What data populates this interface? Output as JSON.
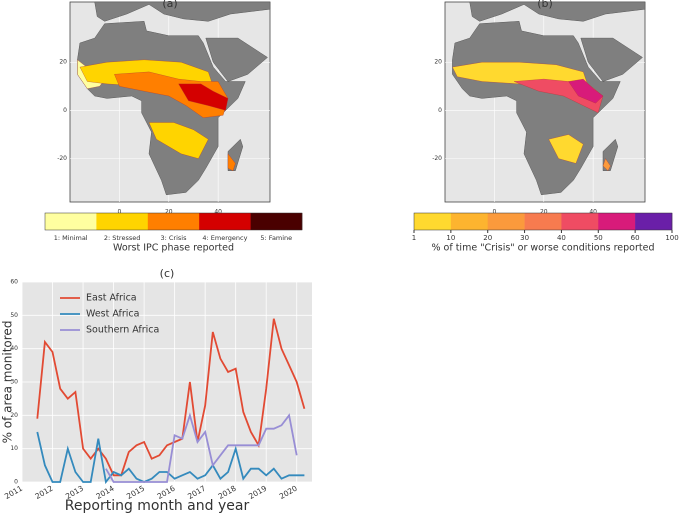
{
  "chart_data": [
    {
      "type": "map",
      "title": "(a)",
      "xlim": [
        -20,
        61
      ],
      "ylim": [
        -38,
        45
      ],
      "xticks": [
        0,
        20,
        40
      ],
      "yticks": [
        20,
        0,
        -20
      ],
      "colorbar": {
        "labels": [
          "1: Minimal",
          "2: Stressed",
          "3: Crisis",
          "4: Emergency",
          "5: Famine"
        ],
        "colors": [
          "#ffffa0",
          "#ffd400",
          "#ff7f00",
          "#d40000",
          "#4a0000"
        ],
        "label": "Worst IPC phase reported"
      }
    },
    {
      "type": "map",
      "title": "(b)",
      "xlim": [
        -20,
        61
      ],
      "ylim": [
        -38,
        45
      ],
      "xticks": [
        0,
        20,
        40
      ],
      "yticks": [
        20,
        0,
        -20
      ],
      "colorbar": {
        "ticks": [
          1,
          10,
          20,
          30,
          40,
          50,
          60,
          100
        ],
        "colors": [
          "#ffd92f",
          "#fdb42f",
          "#fb9a3c",
          "#f77b4f",
          "#ef4c63",
          "#d81b7a",
          "#6a1fa8"
        ],
        "label": "% of time \"Crisis\" or worse conditions reported"
      }
    },
    {
      "type": "line",
      "title": "(c)",
      "xlabel": "Reporting month and year",
      "ylabel": "% of area monitored",
      "x": [
        2011.5,
        2011.75,
        2012,
        2012.25,
        2012.5,
        2012.75,
        2013,
        2013.25,
        2013.5,
        2013.75,
        2014,
        2014.25,
        2014.5,
        2014.75,
        2015,
        2015.25,
        2015.5,
        2015.75,
        2016,
        2016.25,
        2016.5,
        2016.75,
        2017,
        2017.25,
        2017.5,
        2017.75,
        2018,
        2018.25,
        2018.5,
        2018.75,
        2019,
        2019.25,
        2019.5,
        2019.75,
        2020,
        2020.25
      ],
      "xlim": [
        2011,
        2020.5
      ],
      "xticks": [
        2011,
        2012,
        2013,
        2014,
        2015,
        2016,
        2017,
        2018,
        2019,
        2020
      ],
      "ylim": [
        0,
        60
      ],
      "yticks": [
        0,
        10,
        20,
        30,
        40,
        50,
        60
      ],
      "grid": true,
      "legend": "upper left",
      "series": [
        {
          "name": "East Africa",
          "color": "#e24a33",
          "values": [
            19,
            42,
            39,
            28,
            25,
            27,
            10,
            7,
            10,
            7,
            2,
            2,
            9,
            11,
            12,
            7,
            8,
            11,
            12,
            13,
            30,
            12,
            23,
            45,
            37,
            33,
            34,
            21,
            15,
            11,
            28,
            49,
            40,
            35,
            30,
            22
          ]
        },
        {
          "name": "West Africa",
          "color": "#348abd",
          "values": [
            15,
            5,
            0,
            0,
            10,
            3,
            0,
            0,
            13,
            0,
            3,
            2,
            4,
            1,
            0,
            1,
            3,
            3,
            1,
            2,
            3,
            1,
            2,
            5,
            1,
            3,
            10,
            1,
            4,
            4,
            2,
            4,
            1,
            2,
            2,
            2
          ]
        },
        {
          "name": "Southern Africa",
          "color": "#988ed5",
          "values": [
            null,
            null,
            null,
            null,
            null,
            null,
            null,
            null,
            null,
            4,
            0,
            0,
            0,
            0,
            0,
            0,
            0,
            0,
            14,
            13,
            20,
            12,
            15,
            5,
            8,
            11,
            11,
            11,
            11,
            11,
            16,
            16,
            17,
            20,
            8,
            null
          ]
        }
      ]
    }
  ]
}
